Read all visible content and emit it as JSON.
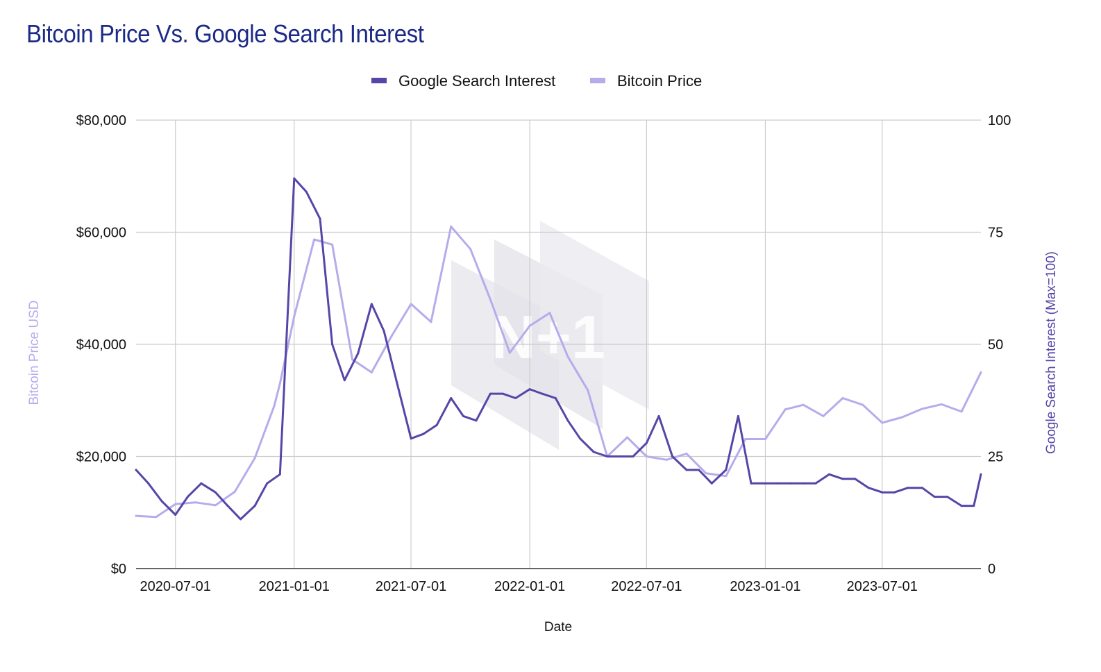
{
  "chart_data": {
    "type": "line",
    "title": "Bitcoin Price Vs. Google Search Interest",
    "xlabel": "Date",
    "ylabel_left": "Bitcoin Price USD",
    "ylabel_right": "Google Search Interest (Max=100)",
    "left_axis": {
      "min": 0,
      "max": 80000,
      "ticks": [
        0,
        20000,
        40000,
        60000,
        80000
      ],
      "tick_labels": [
        "$0",
        "$20,000",
        "$40,000",
        "$60,000",
        "$80,000"
      ]
    },
    "right_axis": {
      "min": 0,
      "max": 100,
      "ticks": [
        0,
        25,
        50,
        75,
        100
      ],
      "tick_labels": [
        "0",
        "25",
        "50",
        "75",
        "100"
      ]
    },
    "x_range": [
      "2020-05-01",
      "2023-12-01"
    ],
    "x_ticks": [
      "2020-07-01",
      "2021-01-01",
      "2021-07-01",
      "2022-01-01",
      "2022-07-01",
      "2023-01-01",
      "2023-07-01"
    ],
    "grid": true,
    "legend_position": "top",
    "colors": {
      "google": "#5845a8",
      "bitcoin": "#b6acec",
      "left_axis_title": "#b6acec",
      "right_axis_title": "#5845a8",
      "title": "#1c2a87",
      "grid": "#cccccc"
    },
    "series": [
      {
        "name": "Google Search Interest",
        "axis": "right",
        "x": [
          "2020-05-01",
          "2020-05-20",
          "2020-06-10",
          "2020-07-01",
          "2020-07-20",
          "2020-08-10",
          "2020-09-01",
          "2020-09-20",
          "2020-10-10",
          "2020-11-01",
          "2020-11-20",
          "2020-12-10",
          "2021-01-01",
          "2021-01-20",
          "2021-02-10",
          "2021-03-01",
          "2021-03-20",
          "2021-04-10",
          "2021-05-01",
          "2021-05-20",
          "2021-06-10",
          "2021-07-01",
          "2021-07-20",
          "2021-08-10",
          "2021-09-01",
          "2021-09-20",
          "2021-10-10",
          "2021-11-01",
          "2021-11-20",
          "2021-12-10",
          "2022-01-01",
          "2022-01-20",
          "2022-02-10",
          "2022-03-01",
          "2022-03-20",
          "2022-04-10",
          "2022-05-01",
          "2022-05-20",
          "2022-06-10",
          "2022-07-01",
          "2022-07-20",
          "2022-08-10",
          "2022-09-01",
          "2022-09-20",
          "2022-10-10",
          "2022-11-01",
          "2022-11-20",
          "2022-12-10",
          "2023-01-01",
          "2023-01-20",
          "2023-02-10",
          "2023-03-01",
          "2023-03-20",
          "2023-04-10",
          "2023-05-01",
          "2023-05-20",
          "2023-06-10",
          "2023-07-01",
          "2023-07-20",
          "2023-08-10",
          "2023-09-01",
          "2023-09-20",
          "2023-10-10",
          "2023-11-01",
          "2023-11-20",
          "2023-12-01"
        ],
        "values": [
          22,
          19,
          15,
          12,
          16,
          19,
          17,
          14,
          11,
          14,
          19,
          21,
          87,
          84,
          78,
          50,
          42,
          48,
          59,
          53,
          41,
          29,
          30,
          32,
          38,
          34,
          33,
          39,
          39,
          38,
          40,
          39,
          38,
          33,
          29,
          26,
          25,
          25,
          25,
          28,
          34,
          25,
          22,
          22,
          19,
          22,
          34,
          19,
          19,
          19,
          19,
          19,
          19,
          21,
          20,
          20,
          18,
          17,
          17,
          18,
          18,
          16,
          16,
          14,
          14,
          21
        ]
      },
      {
        "name": "Bitcoin Price",
        "axis": "left",
        "x": [
          "2020-05-01",
          "2020-06-01",
          "2020-07-01",
          "2020-08-01",
          "2020-09-01",
          "2020-10-01",
          "2020-11-01",
          "2020-12-01",
          "2020-12-10",
          "2021-01-01",
          "2021-02-01",
          "2021-03-01",
          "2021-04-01",
          "2021-05-01",
          "2021-06-01",
          "2021-07-01",
          "2021-08-01",
          "2021-09-01",
          "2021-10-01",
          "2021-11-01",
          "2021-12-01",
          "2022-01-01",
          "2022-02-01",
          "2022-03-01",
          "2022-04-01",
          "2022-05-01",
          "2022-06-01",
          "2022-07-01",
          "2022-08-01",
          "2022-09-01",
          "2022-10-01",
          "2022-11-01",
          "2022-12-01",
          "2023-01-01",
          "2023-02-01",
          "2023-03-01",
          "2023-04-01",
          "2023-05-01",
          "2023-06-01",
          "2023-07-01",
          "2023-08-01",
          "2023-09-01",
          "2023-10-01",
          "2023-11-01",
          "2023-12-01"
        ],
        "values": [
          9400,
          9200,
          11500,
          11800,
          11300,
          13700,
          19700,
          29000,
          33000,
          45000,
          58700,
          57800,
          37300,
          35000,
          41500,
          47200,
          44000,
          61000,
          57000,
          48000,
          38500,
          43300,
          45600,
          37800,
          31800,
          20000,
          23400,
          20000,
          19400,
          20500,
          17000,
          16500,
          23100,
          23100,
          28400,
          29200,
          27200,
          30400,
          29200,
          26000,
          27000,
          28500,
          29300,
          28000,
          35000
        ]
      }
    ]
  },
  "watermark": "N+1"
}
